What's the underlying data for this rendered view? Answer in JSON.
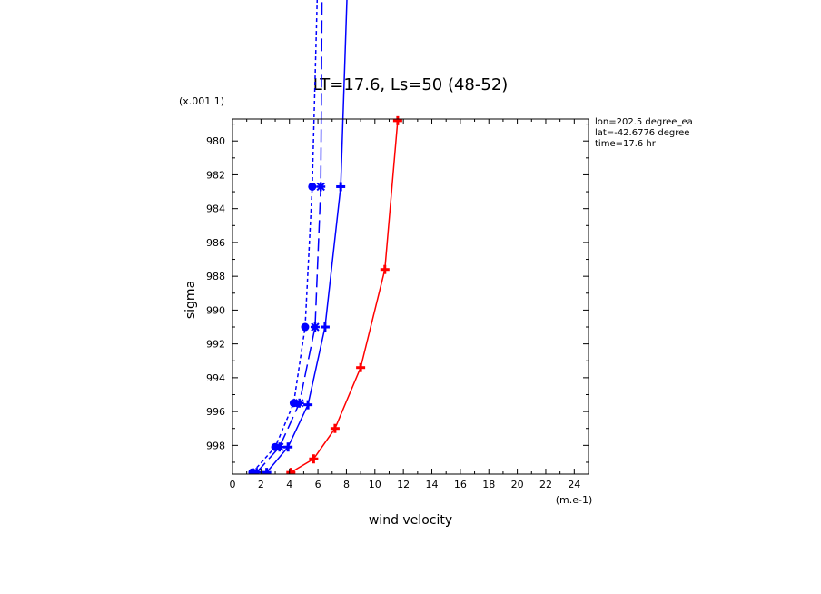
{
  "chart_data": {
    "type": "line",
    "title": "LT=17.6, Ls=50 (48-52)",
    "xlabel": "wind velocity",
    "ylabel": "sigma",
    "x_unit": "(m.e-1)",
    "y_scale_label": "(x.001 1)",
    "xlim": [
      0,
      25
    ],
    "ylim": [
      999.7,
      978.7
    ],
    "x_ticks": [
      "0",
      "2",
      "4",
      "6",
      "8",
      "10",
      "12",
      "14",
      "16",
      "18",
      "20",
      "22",
      "24"
    ],
    "x_tick_values": [
      0,
      2,
      4,
      6,
      8,
      10,
      12,
      14,
      16,
      18,
      20,
      22,
      24
    ],
    "y_ticks": [
      "980",
      "982",
      "984",
      "986",
      "988",
      "990",
      "992",
      "994",
      "996",
      "998"
    ],
    "y_tick_values": [
      980,
      982,
      984,
      986,
      988,
      990,
      992,
      994,
      996,
      998
    ],
    "info": [
      "lon=202.5 degree_ea",
      "lat=-42.6776 degree",
      "time=17.6 hr"
    ],
    "series": [
      {
        "color": "#ff0000",
        "style": "solid",
        "marker": "plus",
        "x": [
          4.1,
          5.7,
          7.2,
          9.0,
          10.7,
          11.6
        ],
        "y": [
          999.6,
          998.8,
          997.0,
          993.4,
          987.6,
          978.8
        ]
      },
      {
        "color": "#0000ff",
        "style": "solid",
        "marker": "plus",
        "x": [
          2.4,
          3.9,
          5.3,
          6.5,
          7.6,
          8.1
        ],
        "y": [
          999.6,
          998.1,
          995.6,
          991.0,
          982.7,
          970.0
        ]
      },
      {
        "color": "#0000ff",
        "style": "longdash",
        "marker": "star",
        "x": [
          1.7,
          3.3,
          4.7,
          5.8,
          6.2,
          6.3
        ],
        "y": [
          999.6,
          998.1,
          995.5,
          991.0,
          982.7,
          970.0
        ]
      },
      {
        "color": "#0000ff",
        "style": "dotted",
        "marker": "dot",
        "x": [
          1.4,
          3.0,
          4.3,
          5.1,
          5.6,
          6.0
        ],
        "y": [
          999.6,
          998.1,
          995.5,
          991.0,
          982.7,
          970.0
        ]
      }
    ]
  }
}
